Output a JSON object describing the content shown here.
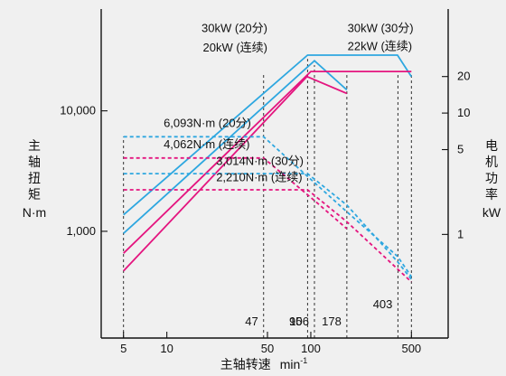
{
  "chart_data": {
    "type": "line",
    "x_scale": "log",
    "y_scale": "log",
    "xlim": [
      3.5,
      900
    ],
    "ylim": [
      130,
      70000
    ],
    "y2lim": [
      0.14,
      72
    ],
    "xlabel": "主轴转速",
    "xlabel_unit": "min",
    "xlabel_unit_sup": "-1",
    "ylabel": [
      "主",
      "轴",
      "扭",
      "矩"
    ],
    "ylabel_unit": "N·m",
    "y2label": [
      "电",
      "机",
      "功",
      "率"
    ],
    "y2label_unit": "kW",
    "x_ticks": [
      5,
      10,
      50,
      100,
      500
    ],
    "x_ticklabels": [
      "5",
      "10",
      "50",
      "100",
      "500"
    ],
    "y_ticks": [
      1000,
      10000
    ],
    "y_ticklabels": [
      "1,000",
      "10,000"
    ],
    "y2_ticks": [
      1,
      5,
      10,
      20
    ],
    "y2_ticklabels": [
      "1",
      "5",
      "10",
      "20"
    ],
    "grid": false,
    "vertical_guides": [
      {
        "x": 5,
        "label": "",
        "top": 6093
      },
      {
        "x": 47,
        "label": "47",
        "top": 20000
      },
      {
        "x": 95,
        "label": "95",
        "top": 27000
      },
      {
        "x": 106,
        "label": "106",
        "top": 24000
      },
      {
        "x": 178,
        "label": "178",
        "top": 20000
      },
      {
        "x": 403,
        "label": "403",
        "top": 20000
      },
      {
        "x": 500,
        "label": "",
        "top": 20000
      }
    ],
    "series": [
      {
        "axis": "power",
        "color": "#2ea7e0",
        "dash": false,
        "points": [
          [
            5,
            1.45
          ],
          [
            95,
            30
          ],
          [
            400,
            30
          ],
          [
            500,
            20
          ]
        ]
      },
      {
        "axis": "power",
        "color": "#2ea7e0",
        "dash": false,
        "points": [
          [
            5,
            1.02
          ],
          [
            106,
            27
          ],
          [
            178,
            15.5
          ]
        ]
      },
      {
        "axis": "power",
        "color": "#e4157f",
        "dash": false,
        "points": [
          [
            5,
            0.7
          ],
          [
            100,
            22
          ],
          [
            500,
            22
          ]
        ]
      },
      {
        "axis": "power",
        "color": "#e4157f",
        "dash": false,
        "points": [
          [
            5,
            0.5
          ],
          [
            94,
            20
          ],
          [
            178,
            14.5
          ]
        ]
      },
      {
        "axis": "torque",
        "color": "#2ea7e0",
        "dash": true,
        "points": [
          [
            5,
            6093
          ],
          [
            47,
            6093
          ],
          [
            178,
            1450
          ],
          [
            400,
            620
          ],
          [
            500,
            420
          ]
        ]
      },
      {
        "axis": "torque",
        "color": "#2ea7e0",
        "dash": true,
        "points": [
          [
            5,
            3014
          ],
          [
            95,
            3014
          ],
          [
            178,
            1650
          ],
          [
            400,
            560
          ],
          [
            500,
            400
          ]
        ]
      },
      {
        "axis": "torque",
        "color": "#e4157f",
        "dash": true,
        "points": [
          [
            5,
            4062
          ],
          [
            47,
            4062
          ],
          [
            106,
            1800
          ],
          [
            178,
            1050
          ]
        ]
      },
      {
        "axis": "torque",
        "color": "#e4157f",
        "dash": true,
        "points": [
          [
            5,
            2210
          ],
          [
            95,
            2210
          ],
          [
            178,
            1200
          ],
          [
            500,
            380
          ]
        ]
      }
    ],
    "annotations": [
      {
        "text": "30kW (20分)",
        "x": 50,
        "y": 45000,
        "anchor": "end",
        "ref": "torque"
      },
      {
        "text": "20kW (连续)",
        "x": 50,
        "y": 31000,
        "anchor": "end",
        "ref": "torque"
      },
      {
        "text": "30kW (30分)",
        "x": 180,
        "y": 45000,
        "anchor": "start",
        "ref": "torque"
      },
      {
        "text": "22kW (连续)",
        "x": 180,
        "y": 32000,
        "anchor": "start",
        "ref": "torque"
      },
      {
        "text": "6,093N·m (20分)",
        "x": 9.5,
        "y": 7350,
        "anchor": "start",
        "ref": "torque"
      },
      {
        "text": "4,062N·m (连续)",
        "x": 9.5,
        "y": 4900,
        "anchor": "start",
        "ref": "torque"
      },
      {
        "text": "3,014N·m (30分)",
        "x": 22,
        "y": 3550,
        "anchor": "start",
        "ref": "torque"
      },
      {
        "text": "2,210N·m (连续)",
        "x": 22,
        "y": 2600,
        "anchor": "start",
        "ref": "torque"
      }
    ]
  }
}
